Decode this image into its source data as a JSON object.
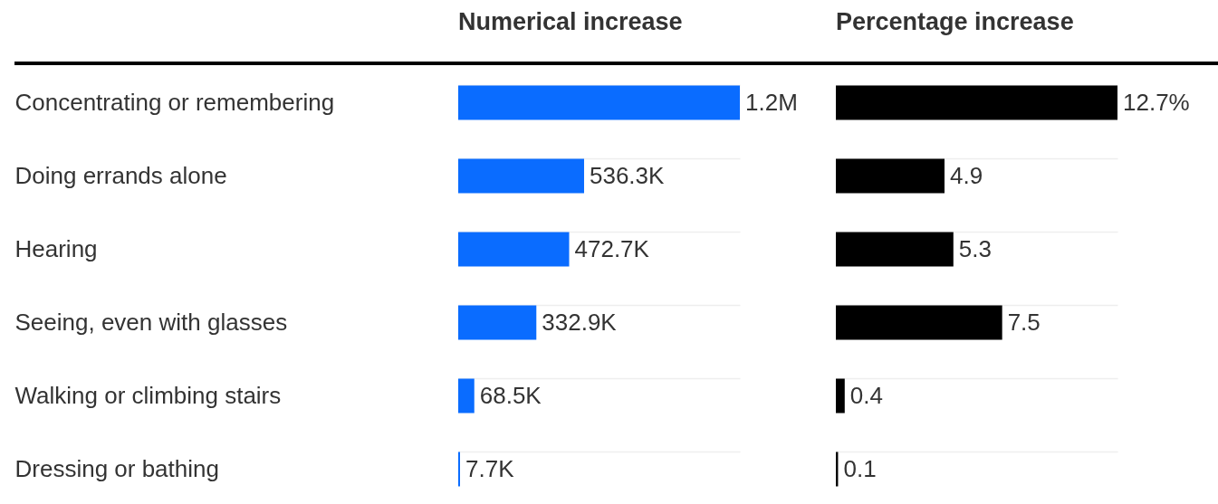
{
  "chart_data": [
    {
      "type": "bar",
      "orientation": "horizontal",
      "title": "Numerical increase",
      "categories": [
        "Concentrating or remembering",
        "Doing errands alone",
        "Hearing",
        "Seeing, even with glasses",
        "Walking or climbing stairs",
        "Dressing or bathing"
      ],
      "values": [
        1200000,
        536300,
        472700,
        332900,
        68500,
        7700
      ],
      "value_labels": [
        "1.2M",
        "536.3K",
        "472.7K",
        "332.9K",
        "68.5K",
        "7.7K"
      ],
      "color": "#0a6cff",
      "grid": "y",
      "tick_labels": "y"
    },
    {
      "type": "bar",
      "orientation": "horizontal",
      "title": "Percentage increase",
      "categories": [
        null,
        null,
        null,
        null,
        null,
        null
      ],
      "values": [
        12.7,
        4.9,
        5.3,
        7.5,
        0.4,
        0.1
      ],
      "value_labels": [
        "12.7%",
        "4.9",
        "5.3",
        "7.5",
        "0.4",
        "0.1"
      ],
      "color": "#000000",
      "grid": "y",
      "tick_labels": false
    }
  ]
}
